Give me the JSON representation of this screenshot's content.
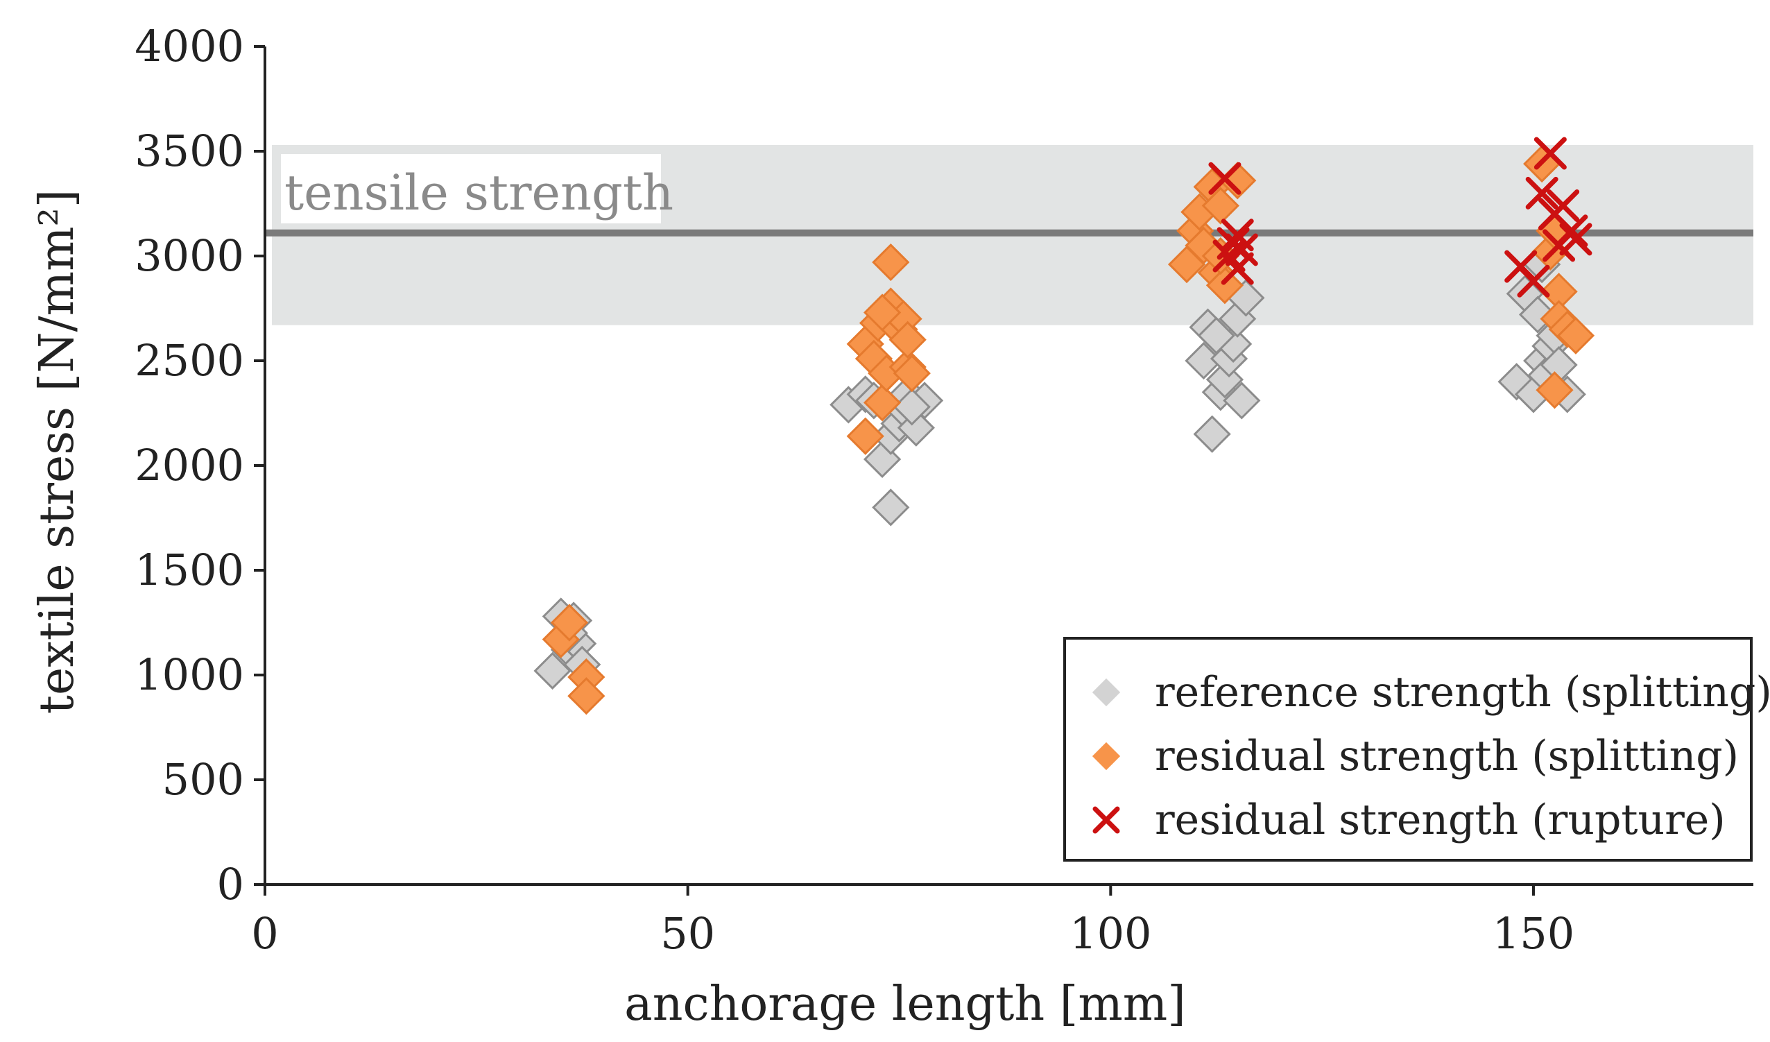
{
  "chart_data": {
    "type": "scatter",
    "xlabel": "anchorage length [mm]",
    "ylabel": "textile stress [N/mm²]",
    "xlim": [
      0,
      176
    ],
    "ylim": [
      0,
      4000
    ],
    "x_ticks": [
      "0",
      "50",
      "100",
      "150"
    ],
    "y_ticks": [
      "0",
      "500",
      "1000",
      "1500",
      "2000",
      "2500",
      "3000",
      "3500",
      "4000"
    ],
    "grid": false,
    "legend_position": "bottom-right",
    "reference_band": {
      "label": "tensile strength",
      "mean": 3110,
      "lower": 2670,
      "upper": 3530
    },
    "colors": {
      "reference": "#d3d3d3",
      "reference_edge": "#8c8c8c",
      "splitting": "#f7944a",
      "splitting_edge": "#e57a2e",
      "rupture": "#cc1111",
      "band": "#e2e4e4",
      "mean_line": "#7a7a7a"
    },
    "series": [
      {
        "name": "reference strength (splitting)",
        "marker": "diamond",
        "color": "#d3d3d3",
        "points": [
          [
            34,
            1020
          ],
          [
            35,
            1280
          ],
          [
            36,
            1120
          ],
          [
            36.5,
            1260
          ],
          [
            37,
            1150
          ],
          [
            37.5,
            1050
          ],
          [
            36,
            1200
          ],
          [
            69,
            2290
          ],
          [
            71,
            2340
          ],
          [
            72,
            2310
          ],
          [
            73,
            2030
          ],
          [
            74,
            1800
          ],
          [
            74,
            2140
          ],
          [
            75,
            2200
          ],
          [
            75.5,
            2270
          ],
          [
            76,
            2340
          ],
          [
            77,
            2180
          ],
          [
            78,
            2310
          ],
          [
            76.5,
            2280
          ],
          [
            111,
            2500
          ],
          [
            111.5,
            2660
          ],
          [
            112,
            2150
          ],
          [
            113,
            2350
          ],
          [
            113.5,
            2410
          ],
          [
            114,
            2510
          ],
          [
            114.5,
            2580
          ],
          [
            115,
            2700
          ],
          [
            115.5,
            2310
          ],
          [
            116,
            2800
          ],
          [
            112.5,
            2620
          ],
          [
            148,
            2400
          ],
          [
            149,
            2820
          ],
          [
            150,
            2340
          ],
          [
            150.5,
            2720
          ],
          [
            151,
            2500
          ],
          [
            151.5,
            2430
          ],
          [
            152,
            2570
          ],
          [
            152.5,
            2620
          ],
          [
            153,
            2480
          ],
          [
            154,
            2340
          ],
          [
            151,
            2960
          ]
        ]
      },
      {
        "name": "residual strength (splitting)",
        "marker": "diamond",
        "color": "#f7944a",
        "points": [
          [
            35,
            1170
          ],
          [
            36,
            1250
          ],
          [
            38,
            990
          ],
          [
            38,
            900
          ],
          [
            71,
            2140
          ],
          [
            71,
            2580
          ],
          [
            72,
            2510
          ],
          [
            72.5,
            2680
          ],
          [
            73,
            2300
          ],
          [
            73.5,
            2440
          ],
          [
            74,
            2760
          ],
          [
            74,
            2970
          ],
          [
            75,
            2650
          ],
          [
            75.5,
            2700
          ],
          [
            76,
            2470
          ],
          [
            76,
            2600
          ],
          [
            76.5,
            2440
          ],
          [
            73,
            2730
          ],
          [
            109,
            2960
          ],
          [
            110,
            3120
          ],
          [
            110.5,
            3210
          ],
          [
            111,
            3050
          ],
          [
            112,
            3330
          ],
          [
            112.5,
            2920
          ],
          [
            113,
            3240
          ],
          [
            113.5,
            2860
          ],
          [
            115,
            3360
          ],
          [
            113,
            3000
          ],
          [
            151,
            3440
          ],
          [
            152,
            3020
          ],
          [
            152.5,
            2360
          ],
          [
            153,
            2830
          ],
          [
            153,
            2700
          ],
          [
            154,
            2650
          ],
          [
            155,
            2620
          ],
          [
            152.5,
            3120
          ]
        ]
      },
      {
        "name": "residual strength (rupture)",
        "marker": "x",
        "color": "#cc1111",
        "points": [
          [
            113.5,
            3370
          ],
          [
            114,
            3000
          ],
          [
            114.5,
            3060
          ],
          [
            115,
            2940
          ],
          [
            115,
            3100
          ],
          [
            115.5,
            3030
          ],
          [
            148.5,
            2950
          ],
          [
            150,
            2880
          ],
          [
            151,
            3300
          ],
          [
            152,
            3490
          ],
          [
            152.5,
            3200
          ],
          [
            153,
            3050
          ],
          [
            153.5,
            3240
          ],
          [
            154.5,
            3120
          ],
          [
            155,
            3080
          ]
        ]
      }
    ]
  }
}
